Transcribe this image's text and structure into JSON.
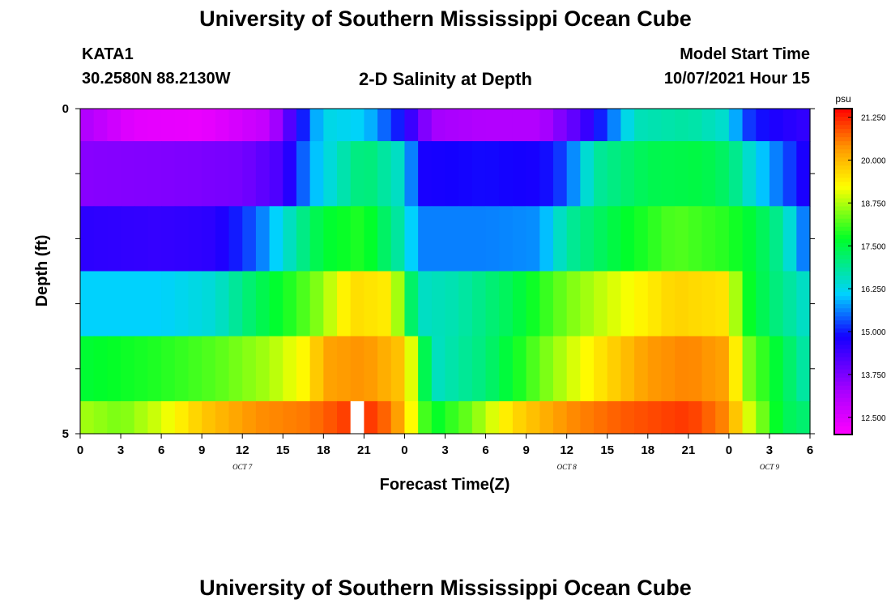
{
  "header": {
    "title": "University of Southern Mississippi Ocean Cube",
    "station": "KATA1",
    "coords": "30.2580N  88.2130W",
    "plot_title": "2-D Salinity at Depth",
    "model_label": "Model Start Time",
    "model_time": "10/07/2021 Hour 15"
  },
  "footer": {
    "title": "University of Southern Mississippi Ocean Cube"
  },
  "chart_data": {
    "type": "heatmap",
    "title": "2-D Salinity at Depth",
    "xlabel": "Forecast Time(Z)",
    "ylabel": "Depth (ft)",
    "ylim": [
      0,
      5
    ],
    "y_ticks": [
      "0",
      "5"
    ],
    "x_ticks": [
      "0",
      "3",
      "6",
      "9",
      "12",
      "15",
      "18",
      "21",
      "0",
      "3",
      "6",
      "9",
      "12",
      "15",
      "18",
      "21",
      "0",
      "3",
      "6"
    ],
    "x_day_labels": [
      {
        "label": "OCT 7",
        "hour": 12
      },
      {
        "label": "OCT 8",
        "hour": 36
      },
      {
        "label": "OCT 9",
        "hour": 51
      }
    ],
    "colorbar": {
      "unit": "psu",
      "min": 12.0,
      "max": 21.5,
      "tick_labels": [
        "21.250",
        "20.000",
        "18.750",
        "17.500",
        "16.250",
        "15.000",
        "13.750",
        "12.500"
      ]
    },
    "missing_column_hour": 20,
    "rows": [
      {
        "depth_range": [
          0.0,
          0.5
        ],
        "keyframes": [
          [
            0,
            13.2
          ],
          [
            4,
            12.4
          ],
          [
            9,
            12.3
          ],
          [
            14,
            12.9
          ],
          [
            16,
            14.6
          ],
          [
            18,
            16.3
          ],
          [
            21,
            16.1
          ],
          [
            24,
            14.8
          ],
          [
            26,
            13.3
          ],
          [
            30,
            13.1
          ],
          [
            34,
            13.1
          ],
          [
            37,
            14.2
          ],
          [
            39,
            15.3
          ],
          [
            41,
            16.6
          ],
          [
            45,
            16.8
          ],
          [
            48,
            16.4
          ],
          [
            49,
            15.3
          ],
          [
            51,
            14.8
          ],
          [
            54,
            14.5
          ]
        ]
      },
      {
        "depth_range": [
          0.5,
          1.5
        ],
        "keyframes": [
          [
            0,
            13.6
          ],
          [
            8,
            13.7
          ],
          [
            12,
            13.8
          ],
          [
            15,
            14.3
          ],
          [
            17,
            15.8
          ],
          [
            18,
            16.2
          ],
          [
            21,
            17.2
          ],
          [
            24,
            16.4
          ],
          [
            25,
            14.8
          ],
          [
            30,
            14.9
          ],
          [
            34,
            14.8
          ],
          [
            36,
            15.3
          ],
          [
            38,
            16.8
          ],
          [
            42,
            17.4
          ],
          [
            46,
            17.5
          ],
          [
            48,
            17.2
          ],
          [
            50,
            16.2
          ],
          [
            52,
            15.4
          ],
          [
            54,
            14.6
          ]
        ]
      },
      {
        "depth_range": [
          1.5,
          2.5
        ],
        "keyframes": [
          [
            0,
            14.6
          ],
          [
            6,
            14.5
          ],
          [
            10,
            14.6
          ],
          [
            13,
            15.4
          ],
          [
            16,
            16.8
          ],
          [
            18,
            17.6
          ],
          [
            21,
            17.9
          ],
          [
            24,
            16.6
          ],
          [
            25,
            15.6
          ],
          [
            30,
            15.6
          ],
          [
            34,
            15.7
          ],
          [
            36,
            16.8
          ],
          [
            40,
            17.6
          ],
          [
            44,
            18.2
          ],
          [
            48,
            17.9
          ],
          [
            50,
            17.5
          ],
          [
            52,
            16.8
          ],
          [
            54,
            15.2
          ]
        ]
      },
      {
        "depth_range": [
          2.5,
          3.5
        ],
        "keyframes": [
          [
            0,
            16.1
          ],
          [
            6,
            16.1
          ],
          [
            10,
            16.4
          ],
          [
            13,
            17.3
          ],
          [
            16,
            18.0
          ],
          [
            18,
            18.6
          ],
          [
            20,
            19.6
          ],
          [
            23,
            19.4
          ],
          [
            25,
            16.5
          ],
          [
            28,
            16.7
          ],
          [
            32,
            17.4
          ],
          [
            36,
            18.4
          ],
          [
            40,
            19.1
          ],
          [
            44,
            19.7
          ],
          [
            48,
            19.5
          ],
          [
            49,
            17.9
          ],
          [
            51,
            17.2
          ],
          [
            54,
            16.4
          ]
        ]
      },
      {
        "depth_range": [
          3.5,
          4.5
        ],
        "keyframes": [
          [
            0,
            17.6
          ],
          [
            6,
            17.9
          ],
          [
            10,
            18.2
          ],
          [
            14,
            18.7
          ],
          [
            17,
            19.4
          ],
          [
            18,
            20.2
          ],
          [
            21,
            20.4
          ],
          [
            24,
            19.8
          ],
          [
            25,
            18.3
          ],
          [
            26,
            16.5
          ],
          [
            30,
            17.1
          ],
          [
            34,
            18.3
          ],
          [
            38,
            19.4
          ],
          [
            42,
            20.3
          ],
          [
            45,
            20.5
          ],
          [
            48,
            20.2
          ],
          [
            49,
            18.6
          ],
          [
            52,
            17.4
          ],
          [
            54,
            16.6
          ]
        ]
      },
      {
        "depth_range": [
          4.5,
          5.0
        ],
        "keyframes": [
          [
            0,
            18.7
          ],
          [
            3,
            18.4
          ],
          [
            6,
            19.0
          ],
          [
            9,
            19.8
          ],
          [
            13,
            20.4
          ],
          [
            17,
            20.6
          ],
          [
            20,
            21.1
          ],
          [
            21,
            21.2
          ],
          [
            23,
            20.6
          ],
          [
            24,
            19.9
          ],
          [
            25,
            18.6
          ],
          [
            26,
            17.6
          ],
          [
            29,
            18.4
          ],
          [
            32,
            19.6
          ],
          [
            36,
            20.4
          ],
          [
            40,
            20.8
          ],
          [
            45,
            21.1
          ],
          [
            48,
            20.4
          ],
          [
            49,
            19.3
          ],
          [
            52,
            17.4
          ],
          [
            54,
            17.1
          ]
        ]
      }
    ]
  }
}
